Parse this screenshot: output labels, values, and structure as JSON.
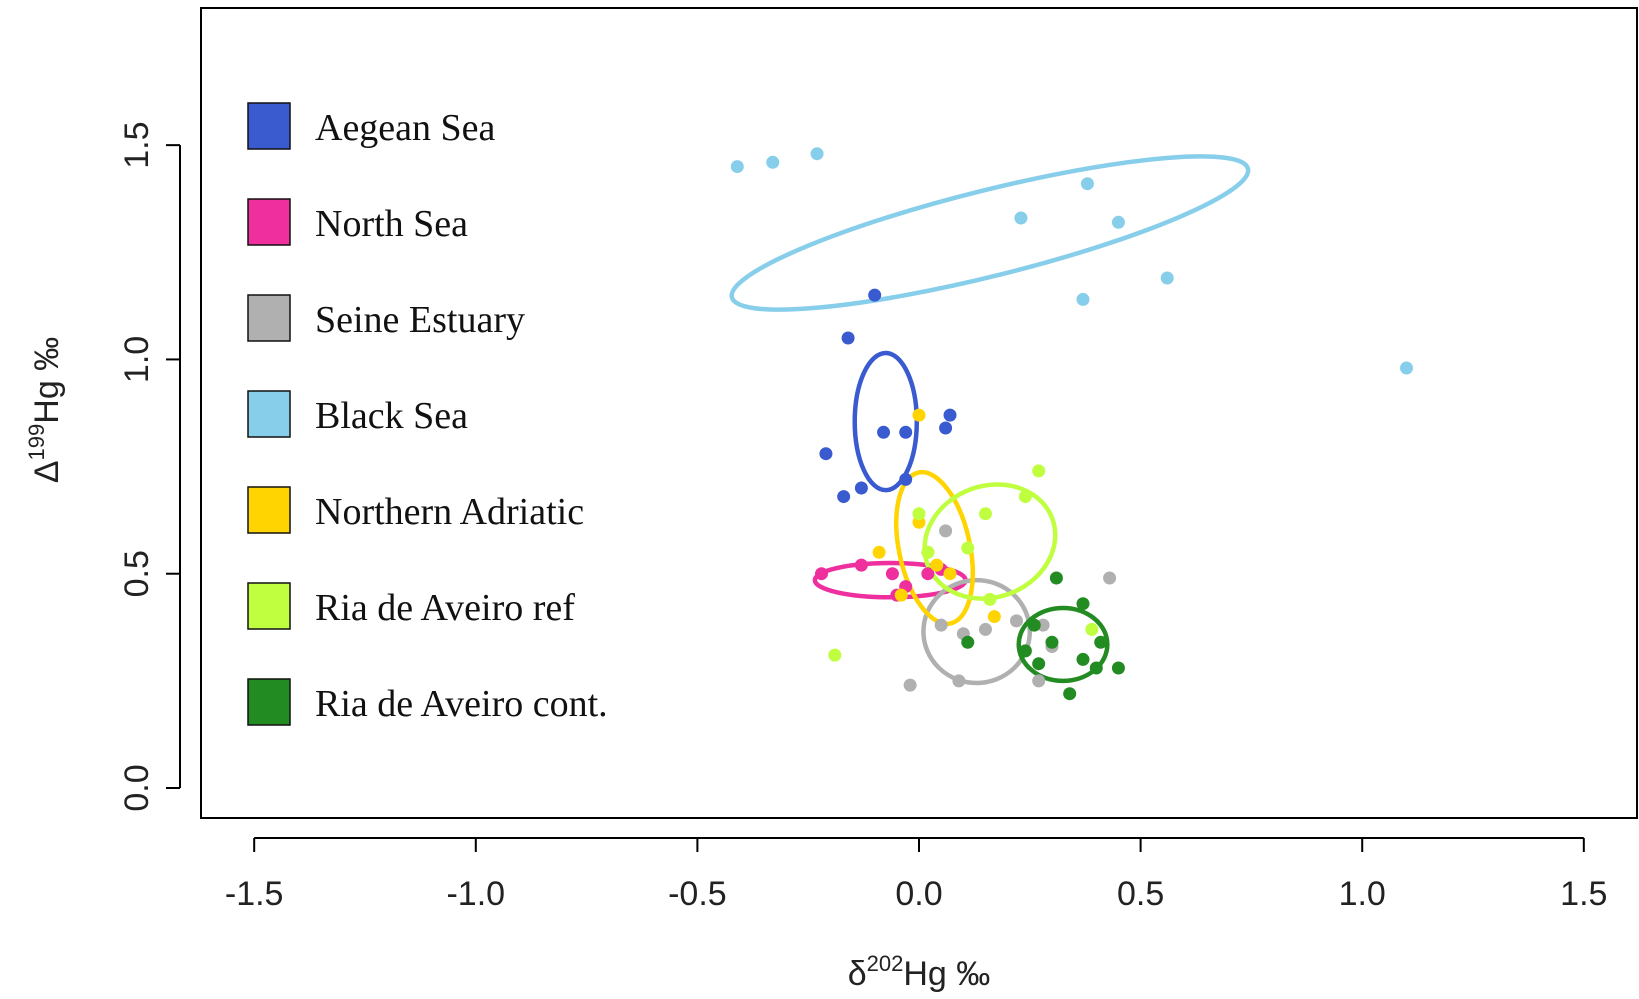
{
  "chart_data": {
    "type": "scatter",
    "title": "",
    "xlabel": {
      "prefix": "δ",
      "sup": "202",
      "main": "Hg ‰"
    },
    "ylabel": {
      "prefix": "Δ",
      "sup": "199",
      "main": "Hg ‰"
    },
    "xlim": [
      -1.62,
      1.62
    ],
    "ylim": [
      -0.07,
      1.82
    ],
    "xticks": [
      -1.5,
      -1.0,
      -0.5,
      0.0,
      0.5,
      1.0,
      1.5
    ],
    "xtick_labels": [
      "-1.5",
      "-1.0",
      "-0.5",
      "0.0",
      "0.5",
      "1.0",
      "1.5"
    ],
    "yticks": [
      0.0,
      0.5,
      1.0,
      1.5
    ],
    "ytick_labels": [
      "0.0",
      "0.5",
      "1.0",
      "1.5"
    ],
    "grid": false,
    "legend_position": "top-left",
    "series": [
      {
        "name": "Aegean Sea",
        "color": "#3a5bd0",
        "points": [
          [
            -0.1,
            1.15
          ],
          [
            -0.16,
            1.05
          ],
          [
            -0.08,
            0.83
          ],
          [
            -0.03,
            0.83
          ],
          [
            0.06,
            0.84
          ],
          [
            0.07,
            0.87
          ],
          [
            -0.21,
            0.78
          ],
          [
            -0.03,
            0.72
          ],
          [
            -0.17,
            0.68
          ],
          [
            -0.13,
            0.7
          ]
        ],
        "ellipse": {
          "cx": -0.075,
          "cy": 0.855,
          "rx": 0.07,
          "ry": 0.16,
          "angle": 0
        }
      },
      {
        "name": "North Sea",
        "color": "#ee2f9d",
        "points": [
          [
            -0.22,
            0.5
          ],
          [
            -0.13,
            0.52
          ],
          [
            -0.06,
            0.5
          ],
          [
            0.02,
            0.5
          ],
          [
            0.05,
            0.51
          ],
          [
            -0.03,
            0.47
          ],
          [
            -0.05,
            0.45
          ]
        ],
        "ellipse": {
          "cx": -0.065,
          "cy": 0.485,
          "rx": 0.17,
          "ry": 0.04,
          "angle": 0
        }
      },
      {
        "name": "Seine Estuary",
        "color": "#b0b0b0",
        "points": [
          [
            0.06,
            0.6
          ],
          [
            0.15,
            0.37
          ],
          [
            0.1,
            0.36
          ],
          [
            0.22,
            0.39
          ],
          [
            0.28,
            0.38
          ],
          [
            0.3,
            0.33
          ],
          [
            0.09,
            0.25
          ],
          [
            -0.02,
            0.24
          ],
          [
            0.27,
            0.25
          ],
          [
            0.43,
            0.49
          ],
          [
            0.05,
            0.38
          ]
        ],
        "ellipse": {
          "cx": 0.13,
          "cy": 0.365,
          "rx": 0.12,
          "ry": 0.12,
          "angle": 0
        }
      },
      {
        "name": "Black Sea",
        "color": "#87ceeb",
        "points": [
          [
            -0.41,
            1.45
          ],
          [
            -0.33,
            1.46
          ],
          [
            -0.23,
            1.48
          ],
          [
            0.38,
            1.41
          ],
          [
            0.23,
            1.33
          ],
          [
            0.45,
            1.32
          ],
          [
            0.56,
            1.19
          ],
          [
            0.37,
            1.14
          ],
          [
            1.1,
            0.98
          ]
        ],
        "ellipse": {
          "cx": 0.16,
          "cy": 1.295,
          "rx": 0.6,
          "ry": 0.1,
          "angle": -14
        }
      },
      {
        "name": "Northern Adriatic",
        "color": "#ffd400",
        "points": [
          [
            -0.09,
            0.55
          ],
          [
            0.0,
            0.87
          ],
          [
            0.0,
            0.62
          ],
          [
            0.04,
            0.52
          ],
          [
            0.07,
            0.5
          ],
          [
            0.17,
            0.4
          ],
          [
            -0.04,
            0.45
          ],
          [
            0.02,
            0.55
          ]
        ],
        "ellipse": {
          "cx": 0.035,
          "cy": 0.56,
          "rx": 0.08,
          "ry": 0.18,
          "angle": -12
        }
      },
      {
        "name": "Ria de Aveiro ref",
        "color": "#bfff3f",
        "points": [
          [
            0.15,
            0.64
          ],
          [
            0.27,
            0.74
          ],
          [
            0.24,
            0.68
          ],
          [
            0.11,
            0.56
          ],
          [
            0.02,
            0.55
          ],
          [
            0.16,
            0.44
          ],
          [
            0.0,
            0.64
          ],
          [
            -0.19,
            0.31
          ],
          [
            0.39,
            0.37
          ]
        ],
        "ellipse": {
          "cx": 0.16,
          "cy": 0.575,
          "rx": 0.15,
          "ry": 0.13,
          "angle": -20
        }
      },
      {
        "name": "Ria de Aveiro cont.",
        "color": "#228b22",
        "points": [
          [
            0.31,
            0.49
          ],
          [
            0.37,
            0.43
          ],
          [
            0.26,
            0.38
          ],
          [
            0.3,
            0.34
          ],
          [
            0.41,
            0.34
          ],
          [
            0.37,
            0.3
          ],
          [
            0.27,
            0.29
          ],
          [
            0.4,
            0.28
          ],
          [
            0.45,
            0.28
          ],
          [
            0.34,
            0.22
          ],
          [
            0.11,
            0.34
          ],
          [
            0.24,
            0.32
          ]
        ],
        "ellipse": {
          "cx": 0.325,
          "cy": 0.335,
          "rx": 0.1,
          "ry": 0.085,
          "angle": 0
        }
      }
    ]
  }
}
